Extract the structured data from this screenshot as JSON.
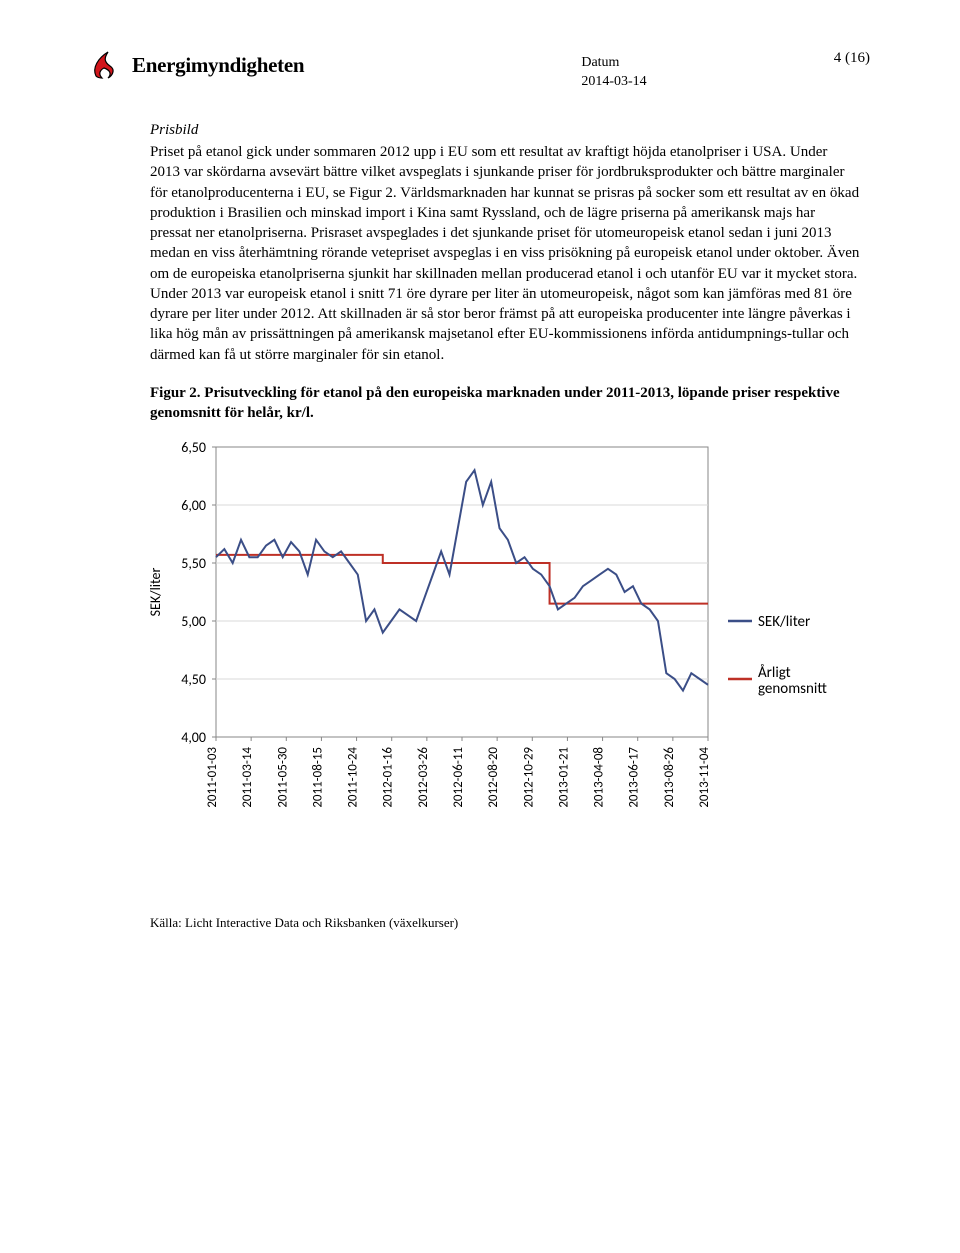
{
  "header": {
    "brand": "Energimyndigheten",
    "datum_label": "Datum",
    "datum_value": "2014-03-14",
    "page": "4 (16)"
  },
  "section_title": "Prisbild",
  "body_text": "Priset på etanol gick under sommaren 2012 upp i EU som ett resultat av kraftigt höjda etanolpriser i USA. Under 2013 var skördarna avsevärt bättre vilket avspeglats i sjunkande priser för jordbruksprodukter och bättre marginaler för etanolproducenterna i EU, se Figur 2. Världsmarknaden har kunnat se prisras på socker som ett resultat av en ökad produktion i Brasilien och minskad import i Kina samt Ryssland, och de lägre priserna på amerikansk majs har pressat ner etanolpriserna. Prisraset avspeglades i det sjunkande priset för utomeuropeisk etanol sedan i juni 2013 medan en viss återhämtning rörande vetepriset avspeglas i en viss prisökning på europeisk etanol under oktober. Även om de europeiska etanolpriserna sjunkit har skillnaden mellan producerad etanol i och utanför EU var it mycket stora. Under 2013 var europeisk etanol i snitt 71 öre dyrare per liter än utomeuropeisk, något som kan jämföras med 81 öre dyrare per liter under 2012. Att skillnaden är så stor beror främst på att europeiska producenter inte längre påverkas i lika hög mån av prissättningen på amerikansk majsetanol efter EU-kommissionens införda antidumpnings-tullar och därmed kan få ut större marginaler för sin etanol.",
  "figure_caption": "Figur 2. Prisutveckling för etanol på den europeiska marknaden under 2011-2013, löpande priser respektive genomsnitt för helår, kr/l.",
  "chart": {
    "type": "line",
    "background_color": "#ffffff",
    "axis_color": "#878787",
    "grid_color": "#d9d9d9",
    "y_axis_title": "SEK/liter",
    "ylim": [
      4.0,
      6.5
    ],
    "yticks": [
      "4,00",
      "4,50",
      "5,00",
      "5,50",
      "6,00",
      "6,50"
    ],
    "x_labels": [
      "2011-01-03",
      "2011-03-14",
      "2011-05-30",
      "2011-08-15",
      "2011-10-24",
      "2012-01-16",
      "2012-03-26",
      "2012-06-11",
      "2012-08-20",
      "2012-10-29",
      "2013-01-21",
      "2013-04-08",
      "2013-06-17",
      "2013-08-26",
      "2013-11-04"
    ],
    "series_line": {
      "name": "SEK/liter",
      "color": "#3b4e87",
      "width": 2,
      "values": [
        5.55,
        5.62,
        5.5,
        5.7,
        5.55,
        5.55,
        5.65,
        5.7,
        5.55,
        5.68,
        5.6,
        5.4,
        5.7,
        5.6,
        5.55,
        5.6,
        5.5,
        5.4,
        5.0,
        5.1,
        4.9,
        5.0,
        5.1,
        5.05,
        5.0,
        5.2,
        5.4,
        5.6,
        5.4,
        5.8,
        6.2,
        6.3,
        6.0,
        6.2,
        5.8,
        5.7,
        5.5,
        5.55,
        5.45,
        5.4,
        5.3,
        5.1,
        5.15,
        5.2,
        5.3,
        5.35,
        5.4,
        5.45,
        5.4,
        5.25,
        5.3,
        5.15,
        5.1,
        5.0,
        4.55,
        4.5,
        4.4,
        4.55,
        4.5,
        4.45
      ]
    },
    "series_avg": {
      "name": "Årligt genomsnitt",
      "color": "#be3026",
      "width": 2,
      "segments": [
        {
          "from_idx": 0,
          "to_idx": 19,
          "value": 5.57
        },
        {
          "from_idx": 20,
          "to_idx": 39,
          "value": 5.5
        },
        {
          "from_idx": 40,
          "to_idx": 59,
          "value": 5.15
        }
      ]
    },
    "legend": [
      {
        "label": "SEK/liter",
        "color": "#3b4e87"
      },
      {
        "label": "Årligt genomsnitt",
        "color": "#be3026"
      }
    ]
  },
  "source": "Källa: Licht Interactive Data och Riksbanken (växelkurser)"
}
